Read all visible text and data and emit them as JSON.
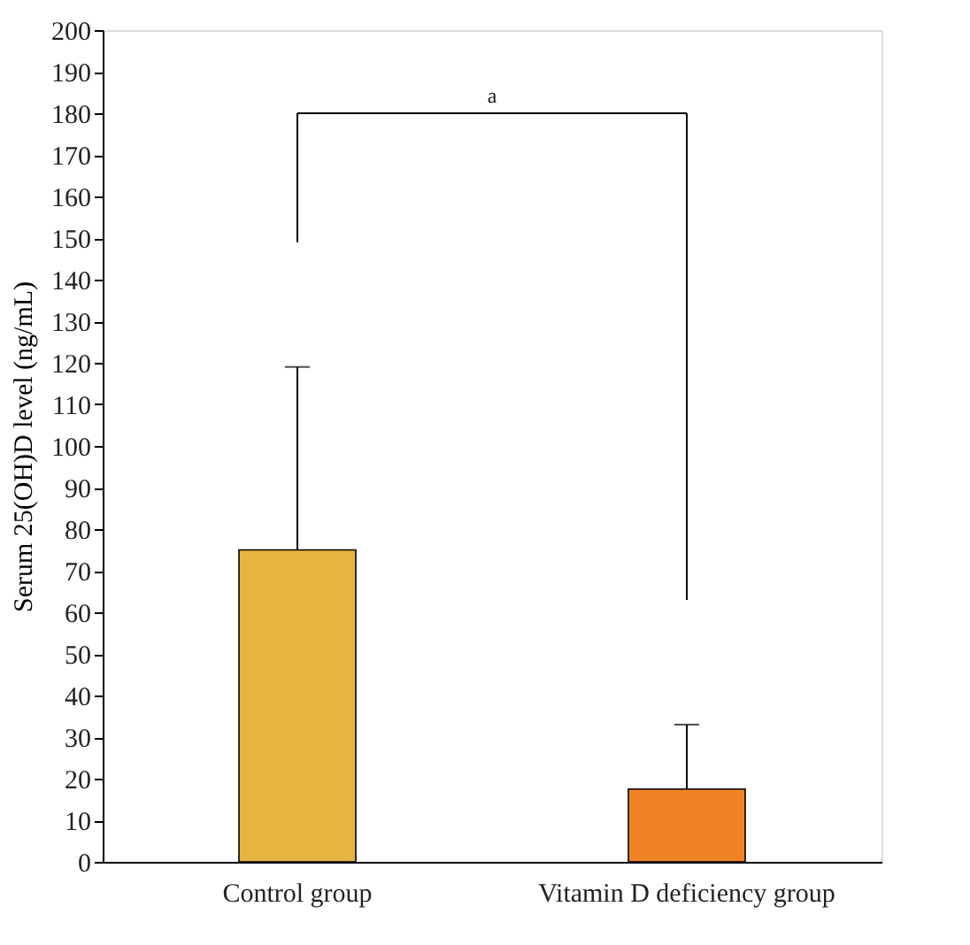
{
  "chart_data": {
    "type": "bar",
    "ylabel": "Serum 25(OH)D level (ng/mL)",
    "categories": [
      "Control group",
      "Vitamin D deficiency group"
    ],
    "values": [
      75,
      17.5
    ],
    "colors": [
      "#e9b440",
      "#f08226"
    ],
    "errors": [
      [
        75,
        119
      ],
      [
        17.5,
        33
      ]
    ],
    "ylim": [
      0,
      200
    ],
    "yticks": [
      0,
      10,
      20,
      30,
      40,
      50,
      60,
      70,
      80,
      90,
      100,
      110,
      120,
      130,
      140,
      150,
      160,
      170,
      180,
      190,
      200
    ],
    "grid": false,
    "annotations": [
      "a"
    ]
  }
}
